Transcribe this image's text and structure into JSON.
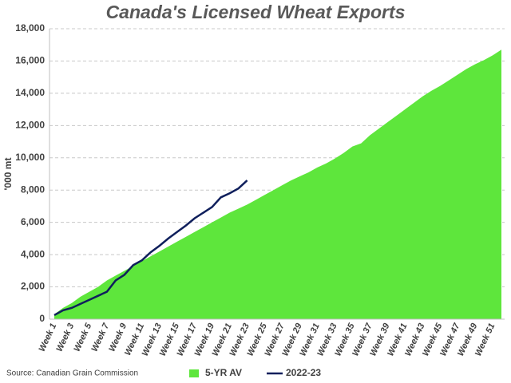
{
  "chart_data": {
    "type": "area",
    "title": "Canada's Licensed Wheat Exports",
    "y_label": "'000 mt",
    "source": "Source: Canadian Grain Commission",
    "categories": [
      "Week 1",
      null,
      "Week 3",
      null,
      "Week 5",
      null,
      "Week 7",
      null,
      "Week 9",
      null,
      "Week 11",
      null,
      "Week 13",
      null,
      "Week 15",
      null,
      "Week 17",
      null,
      "Week 19",
      null,
      "Week 21",
      null,
      "Week 23",
      null,
      "Week 25",
      null,
      "Week 27",
      null,
      "Week 29",
      null,
      "Week 31",
      null,
      "Week 33",
      null,
      "Week 35",
      null,
      "Week 37",
      null,
      "Week 39",
      null,
      "Week 41",
      null,
      "Week 43",
      null,
      "Week 45",
      null,
      "Week 47",
      null,
      "Week 49",
      null,
      "Week 51",
      null
    ],
    "series": [
      {
        "name": "5-YR AV",
        "type": "area",
        "color": "#5ee63c",
        "values": [
          300,
          700,
          1000,
          1400,
          1700,
          2000,
          2400,
          2700,
          3000,
          3300,
          3600,
          3900,
          4200,
          4500,
          4800,
          5100,
          5400,
          5700,
          6000,
          6300,
          6600,
          6850,
          7100,
          7400,
          7700,
          8000,
          8300,
          8600,
          8850,
          9100,
          9400,
          9650,
          9950,
          10300,
          10700,
          10900,
          11400,
          11800,
          12200,
          12600,
          13000,
          13400,
          13800,
          14150,
          14450,
          14800,
          15150,
          15500,
          15800,
          16050,
          16350,
          16700
        ]
      },
      {
        "name": "2022-23",
        "type": "line",
        "color": "#0f1f5c",
        "values": [
          250,
          550,
          700,
          950,
          1200,
          1450,
          1700,
          2400,
          2750,
          3350,
          3650,
          4150,
          4550,
          5000,
          5400,
          5800,
          6250,
          6600,
          6950,
          7550,
          7800,
          8100,
          8600,
          null,
          null,
          null,
          null,
          null,
          null,
          null,
          null,
          null,
          null,
          null,
          null,
          null,
          null,
          null,
          null,
          null,
          null,
          null,
          null,
          null,
          null,
          null,
          null,
          null,
          null,
          null,
          null,
          null
        ]
      }
    ],
    "ylim": [
      0,
      18000
    ],
    "yticks": [
      0,
      {
        "value": 2000,
        "label": "2,000"
      },
      {
        "value": 4000,
        "label": "4,000"
      },
      {
        "value": 6000,
        "label": "6,000"
      },
      {
        "value": 8000,
        "label": "8,000"
      },
      {
        "value": 10000,
        "label": "10,000"
      },
      {
        "value": 12000,
        "label": "12,000"
      },
      {
        "value": 14000,
        "label": "14,000"
      },
      {
        "value": 16000,
        "label": "16,000"
      },
      {
        "value": 18000,
        "label": "18,000"
      }
    ],
    "grid": true
  }
}
